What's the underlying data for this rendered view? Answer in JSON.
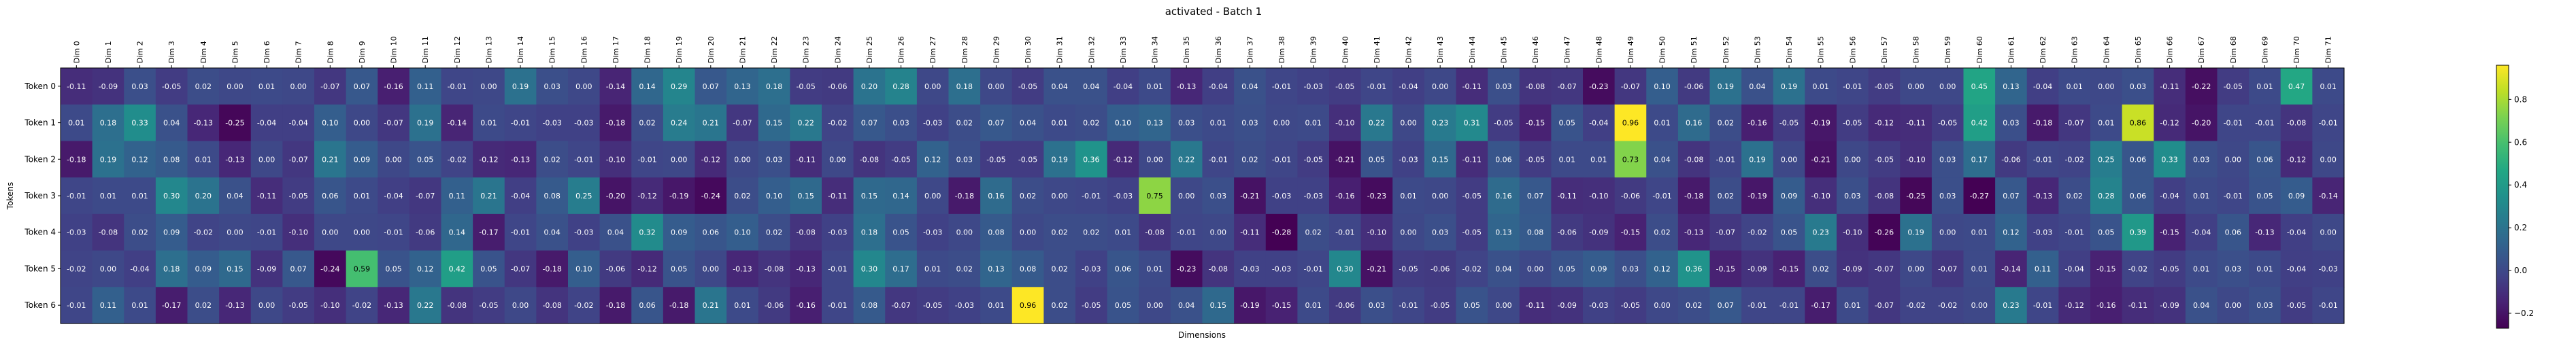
{
  "chart_data": {
    "type": "heatmap",
    "title": "activated - Batch 1",
    "xlabel": "Dimensions",
    "ylabel": "Tokens",
    "rows": [
      "Token 0",
      "Token 1",
      "Token 2",
      "Token 3",
      "Token 4",
      "Token 5",
      "Token 6"
    ],
    "columns": [
      "Dim 0",
      "Dim 1",
      "Dim 2",
      "Dim 3",
      "Dim 4",
      "Dim 5",
      "Dim 6",
      "Dim 7",
      "Dim 8",
      "Dim 9",
      "Dim 10",
      "Dim 11",
      "Dim 12",
      "Dim 13",
      "Dim 14",
      "Dim 15",
      "Dim 16",
      "Dim 17",
      "Dim 18",
      "Dim 19",
      "Dim 20",
      "Dim 21",
      "Dim 22",
      "Dim 23",
      "Dim 24",
      "Dim 25",
      "Dim 26",
      "Dim 27",
      "Dim 28",
      "Dim 29",
      "Dim 30",
      "Dim 31",
      "Dim 32",
      "Dim 33",
      "Dim 34",
      "Dim 35",
      "Dim 36",
      "Dim 37",
      "Dim 38",
      "Dim 39",
      "Dim 40",
      "Dim 41",
      "Dim 42",
      "Dim 43",
      "Dim 44",
      "Dim 45",
      "Dim 46",
      "Dim 47",
      "Dim 48",
      "Dim 49",
      "Dim 50",
      "Dim 51",
      "Dim 52",
      "Dim 53",
      "Dim 54",
      "Dim 55",
      "Dim 56",
      "Dim 57",
      "Dim 58",
      "Dim 59",
      "Dim 60",
      "Dim 61",
      "Dim 62",
      "Dim 63",
      "Dim 64",
      "Dim 65",
      "Dim 66",
      "Dim 67",
      "Dim 68",
      "Dim 69",
      "Dim 70",
      "Dim 71"
    ],
    "values": [
      [
        -0.11,
        -0.09,
        0.03,
        -0.05,
        0.02,
        -0.0,
        0.01,
        0.0,
        -0.07,
        0.07,
        -0.16,
        0.11,
        -0.01,
        -0.0,
        0.19,
        0.03,
        -0.0,
        -0.14,
        0.14,
        0.29,
        0.07,
        0.13,
        0.18,
        -0.05,
        -0.06,
        0.2,
        0.28,
        -0.0,
        0.18,
        0.0,
        -0.05,
        0.04,
        0.04,
        -0.04,
        0.01,
        -0.13,
        -0.04,
        0.04,
        -0.01,
        -0.03,
        -0.05,
        -0.01,
        -0.04,
        0.0,
        -0.11,
        0.03,
        -0.08,
        -0.07,
        -0.23,
        -0.07,
        0.1,
        -0.06,
        0.19,
        0.04,
        0.19,
        0.01,
        -0.01,
        -0.05,
        0.0,
        0.0,
        0.45,
        0.13,
        -0.04,
        0.01,
        0.0,
        0.03,
        -0.11,
        -0.22,
        -0.05,
        0.01,
        0.47,
        0.01
      ],
      [
        0.01,
        0.18,
        0.33,
        0.04,
        -0.13,
        -0.25,
        -0.04,
        -0.04,
        0.1,
        0.0,
        -0.07,
        0.19,
        -0.14,
        0.01,
        -0.01,
        -0.03,
        -0.03,
        -0.18,
        0.02,
        0.24,
        0.21,
        -0.07,
        0.15,
        0.22,
        -0.02,
        0.07,
        0.03,
        -0.03,
        0.02,
        0.07,
        0.04,
        0.01,
        0.02,
        0.1,
        0.13,
        0.03,
        0.01,
        0.03,
        0.0,
        0.01,
        -0.1,
        0.22,
        0.0,
        0.23,
        0.31,
        -0.05,
        -0.15,
        0.05,
        -0.04,
        0.96,
        0.01,
        0.16,
        0.02,
        -0.16,
        -0.05,
        -0.19,
        -0.05,
        -0.12,
        -0.11,
        -0.05,
        0.42,
        0.03,
        -0.18,
        -0.07,
        0.01,
        0.86,
        -0.12,
        -0.2,
        -0.01,
        -0.01,
        -0.08,
        -0.01
      ],
      [
        -0.18,
        0.19,
        0.12,
        0.08,
        0.01,
        -0.13,
        -0.0,
        -0.07,
        0.21,
        0.09,
        0.0,
        0.05,
        -0.02,
        -0.12,
        -0.13,
        0.02,
        -0.01,
        -0.1,
        -0.01,
        -0.0,
        -0.12,
        -0.0,
        0.03,
        -0.11,
        0.0,
        -0.08,
        -0.05,
        0.12,
        0.03,
        -0.05,
        -0.05,
        0.19,
        0.36,
        -0.12,
        0.0,
        0.22,
        -0.01,
        0.02,
        -0.01,
        -0.05,
        -0.21,
        0.05,
        -0.03,
        0.15,
        -0.11,
        0.06,
        -0.05,
        0.01,
        0.01,
        0.73,
        0.04,
        -0.08,
        -0.01,
        0.19,
        0.0,
        -0.21,
        -0.0,
        -0.05,
        -0.1,
        0.03,
        0.17,
        -0.06,
        -0.01,
        -0.02,
        0.25,
        0.06,
        0.33,
        0.03,
        0.0,
        0.06,
        -0.12,
        0.0
      ],
      [
        -0.01,
        0.01,
        0.01,
        0.3,
        0.2,
        0.04,
        -0.11,
        -0.05,
        0.06,
        0.01,
        -0.04,
        -0.07,
        0.11,
        0.21,
        -0.04,
        0.08,
        0.25,
        -0.2,
        -0.12,
        -0.19,
        -0.24,
        0.02,
        0.1,
        0.15,
        -0.11,
        0.15,
        0.14,
        -0.0,
        -0.18,
        0.16,
        0.02,
        -0.0,
        -0.01,
        -0.03,
        0.75,
        0.0,
        0.03,
        -0.21,
        -0.03,
        -0.03,
        -0.16,
        -0.23,
        0.01,
        -0.0,
        -0.05,
        0.16,
        0.07,
        -0.11,
        -0.1,
        -0.06,
        -0.01,
        -0.18,
        0.02,
        -0.19,
        0.09,
        -0.1,
        0.03,
        -0.08,
        -0.25,
        0.03,
        -0.27,
        0.07,
        -0.13,
        0.02,
        0.28,
        0.06,
        -0.04,
        0.01,
        -0.01,
        0.05,
        0.09,
        -0.14
      ],
      [
        -0.03,
        -0.08,
        0.02,
        0.09,
        -0.02,
        -0.0,
        -0.01,
        -0.1,
        -0.0,
        -0.0,
        -0.01,
        -0.06,
        0.14,
        -0.17,
        -0.01,
        0.04,
        -0.03,
        0.04,
        0.32,
        0.09,
        0.06,
        0.1,
        0.02,
        -0.08,
        -0.03,
        0.18,
        0.05,
        -0.03,
        -0.0,
        0.08,
        0.0,
        0.02,
        0.02,
        0.01,
        -0.08,
        -0.01,
        -0.0,
        -0.11,
        -0.28,
        0.02,
        -0.01,
        -0.1,
        -0.0,
        0.03,
        -0.05,
        0.13,
        0.08,
        -0.06,
        -0.09,
        -0.15,
        0.02,
        -0.13,
        -0.07,
        -0.02,
        0.05,
        0.23,
        -0.1,
        -0.26,
        0.19,
        0.0,
        0.01,
        0.12,
        -0.03,
        -0.01,
        0.05,
        0.39,
        -0.15,
        -0.04,
        0.06,
        -0.13,
        -0.04,
        0.0
      ],
      [
        -0.02,
        0.0,
        -0.04,
        0.18,
        0.09,
        0.15,
        -0.09,
        0.07,
        -0.24,
        0.59,
        0.05,
        0.12,
        0.42,
        0.05,
        -0.07,
        -0.18,
        0.1,
        -0.06,
        -0.12,
        0.05,
        -0.0,
        -0.13,
        -0.08,
        -0.13,
        -0.01,
        0.3,
        0.17,
        0.01,
        0.02,
        0.13,
        0.08,
        0.02,
        -0.03,
        0.06,
        0.01,
        -0.23,
        -0.08,
        -0.03,
        -0.03,
        -0.01,
        0.3,
        -0.21,
        -0.05,
        -0.06,
        -0.02,
        0.04,
        0.0,
        0.05,
        0.09,
        0.03,
        0.12,
        0.36,
        -0.15,
        -0.09,
        -0.15,
        0.02,
        -0.09,
        -0.07,
        0.0,
        -0.07,
        0.01,
        -0.14,
        0.11,
        -0.04,
        -0.15,
        -0.02,
        -0.05,
        0.01,
        0.03,
        0.01,
        -0.04,
        -0.03
      ],
      [
        -0.01,
        0.11,
        0.01,
        -0.17,
        0.02,
        -0.13,
        0.0,
        -0.05,
        -0.1,
        -0.02,
        -0.13,
        0.22,
        -0.08,
        -0.05,
        -0.0,
        -0.08,
        -0.02,
        -0.18,
        0.06,
        -0.18,
        0.21,
        0.01,
        -0.06,
        -0.16,
        -0.01,
        0.08,
        -0.07,
        -0.05,
        -0.03,
        0.01,
        0.96,
        0.02,
        -0.05,
        0.05,
        0.0,
        0.04,
        0.15,
        -0.19,
        -0.15,
        0.01,
        -0.06,
        0.03,
        -0.01,
        -0.05,
        0.05,
        -0.0,
        -0.11,
        -0.09,
        -0.03,
        -0.05,
        0.0,
        0.02,
        0.07,
        -0.01,
        -0.01,
        -0.17,
        0.01,
        -0.07,
        -0.02,
        -0.02,
        -0.0,
        0.23,
        -0.01,
        -0.12,
        -0.16,
        -0.11,
        -0.09,
        0.04,
        -0.0,
        0.03,
        -0.05,
        -0.01
      ]
    ],
    "colorscale": "viridis",
    "vmin": -0.27,
    "vmax": 0.96,
    "colorbar_ticks": [
      -0.2,
      0.0,
      0.2,
      0.4,
      0.6,
      0.8
    ],
    "colorbar_tick_labels": [
      "−0.2",
      "0.0",
      "0.2",
      "0.4",
      "0.6",
      "0.8"
    ],
    "grid": false,
    "legend": "colorbar-right"
  }
}
